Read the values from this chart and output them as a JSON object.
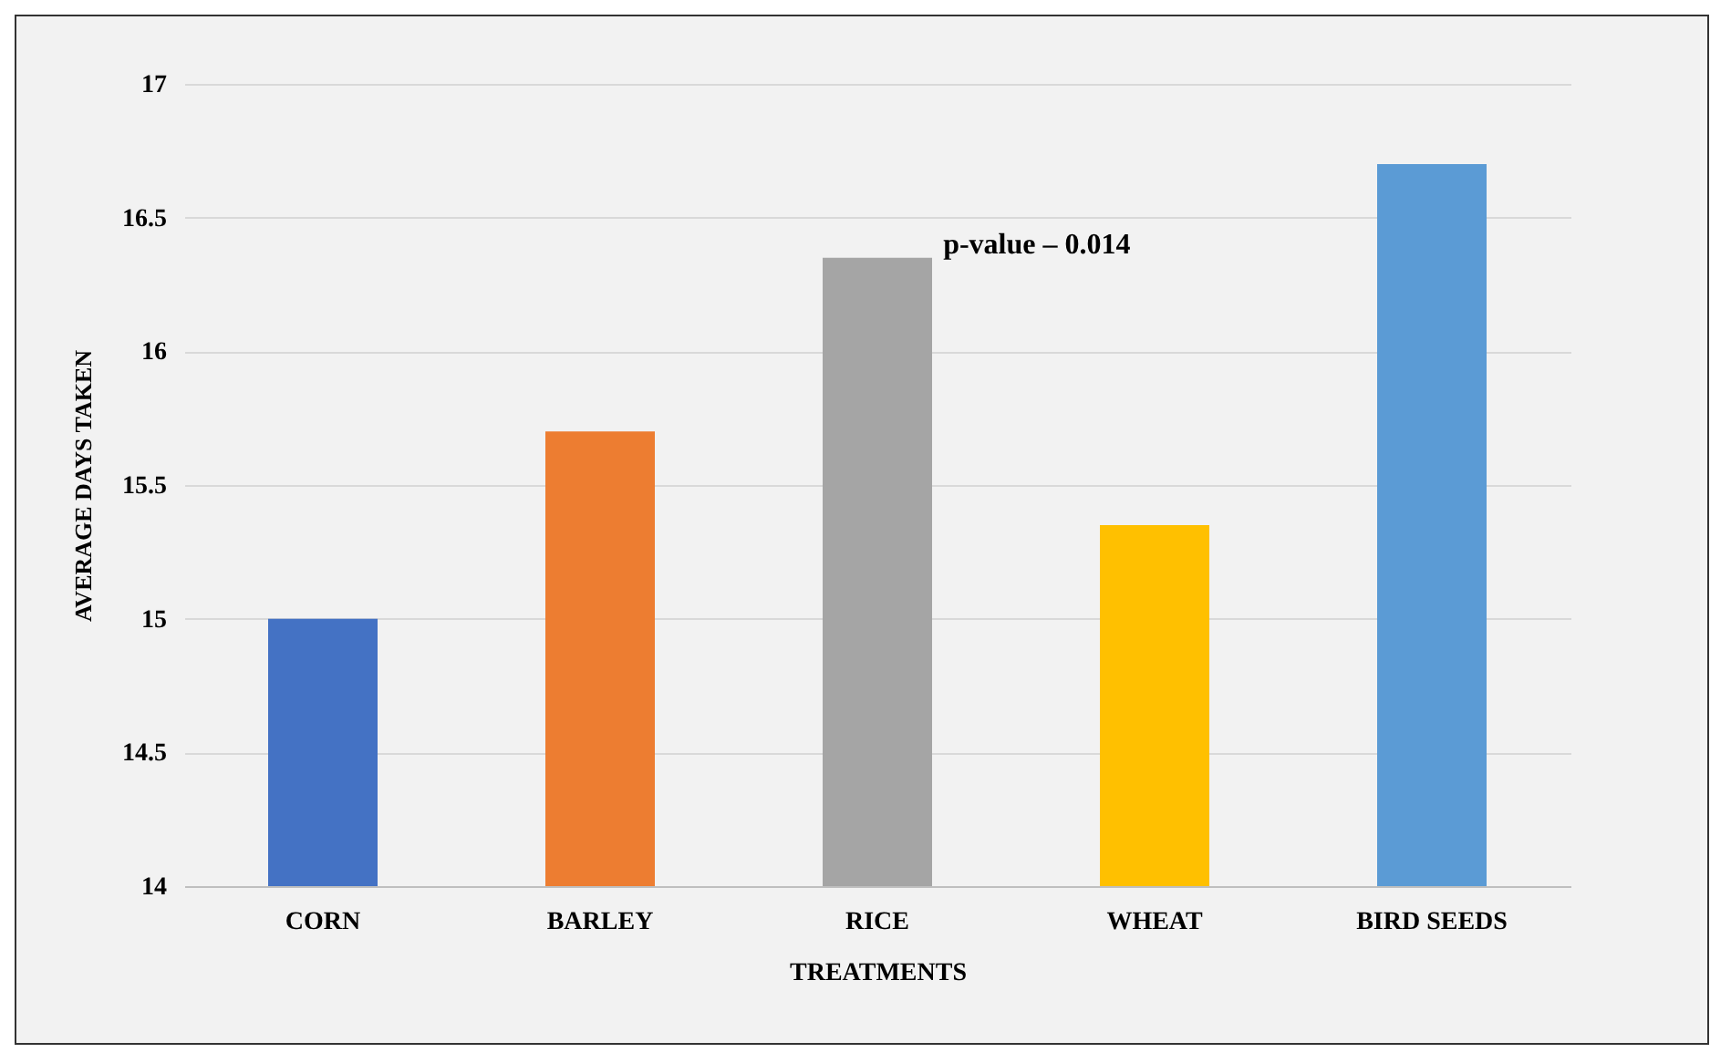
{
  "chart_data": {
    "type": "bar",
    "xlabel": "TREATMENTS",
    "ylabel": "AVERAGE DAYS TAKEN",
    "categories": [
      "CORN",
      "BARLEY",
      "RICE",
      "WHEAT",
      "BIRD SEEDS"
    ],
    "values": [
      15.0,
      15.7,
      16.35,
      15.35,
      16.7
    ],
    "colors": [
      "#4472c4",
      "#ed7d31",
      "#a5a5a5",
      "#ffc000",
      "#5b9bd5"
    ],
    "ylim": [
      14,
      17
    ],
    "yticks": [
      14,
      14.5,
      15,
      15.5,
      16,
      16.5,
      17
    ],
    "grid": "y",
    "annotations": [
      "p-value – 0.014"
    ]
  }
}
